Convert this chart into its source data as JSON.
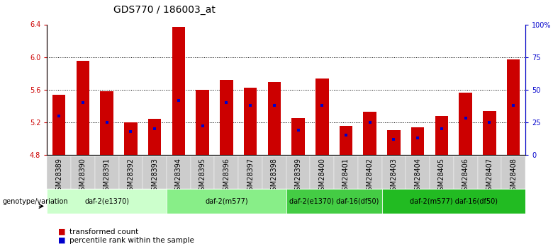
{
  "title": "GDS770 / 186003_at",
  "samples": [
    "GSM28389",
    "GSM28390",
    "GSM28391",
    "GSM28392",
    "GSM28393",
    "GSM28394",
    "GSM28395",
    "GSM28396",
    "GSM28397",
    "GSM28398",
    "GSM28399",
    "GSM28400",
    "GSM28401",
    "GSM28402",
    "GSM28403",
    "GSM28404",
    "GSM28405",
    "GSM28406",
    "GSM28407",
    "GSM28408"
  ],
  "transformed_count": [
    5.54,
    5.95,
    5.58,
    5.2,
    5.24,
    6.37,
    5.6,
    5.72,
    5.62,
    5.69,
    5.25,
    5.74,
    5.16,
    5.33,
    5.1,
    5.14,
    5.28,
    5.56,
    5.34,
    5.97
  ],
  "percentile_rank": [
    30,
    40,
    25,
    18,
    20,
    42,
    22,
    40,
    38,
    38,
    19,
    38,
    15,
    25,
    12,
    13,
    20,
    28,
    25,
    38
  ],
  "ymin": 4.8,
  "ymax": 6.4,
  "yticks": [
    4.8,
    5.2,
    5.6,
    6.0,
    6.4
  ],
  "right_yticks": [
    0,
    25,
    50,
    75,
    100
  ],
  "right_yticklabels": [
    "0",
    "25",
    "50",
    "75",
    "100%"
  ],
  "bar_color": "#cc0000",
  "marker_color": "#0000cc",
  "background_color": "#ffffff",
  "groups": [
    {
      "label": "daf-2(e1370)",
      "start": 0,
      "end": 5,
      "color": "#ccffcc"
    },
    {
      "label": "daf-2(m577)",
      "start": 5,
      "end": 10,
      "color": "#88ee88"
    },
    {
      "label": "daf-2(e1370) daf-16(df50)",
      "start": 10,
      "end": 14,
      "color": "#44cc44"
    },
    {
      "label": "daf-2(m577) daf-16(df50)",
      "start": 14,
      "end": 20,
      "color": "#22bb22"
    }
  ],
  "genotype_label": "genotype/variation",
  "legend_items": [
    {
      "label": "transformed count",
      "color": "#cc0000"
    },
    {
      "label": "percentile rank within the sample",
      "color": "#0000cc"
    }
  ],
  "left_tick_color": "#cc0000",
  "right_tick_color": "#0000cc",
  "title_fontsize": 10,
  "tick_fontsize": 7,
  "bar_width": 0.55,
  "sample_bg_color": "#cccccc",
  "grid_lines": [
    5.2,
    5.6,
    6.0
  ]
}
